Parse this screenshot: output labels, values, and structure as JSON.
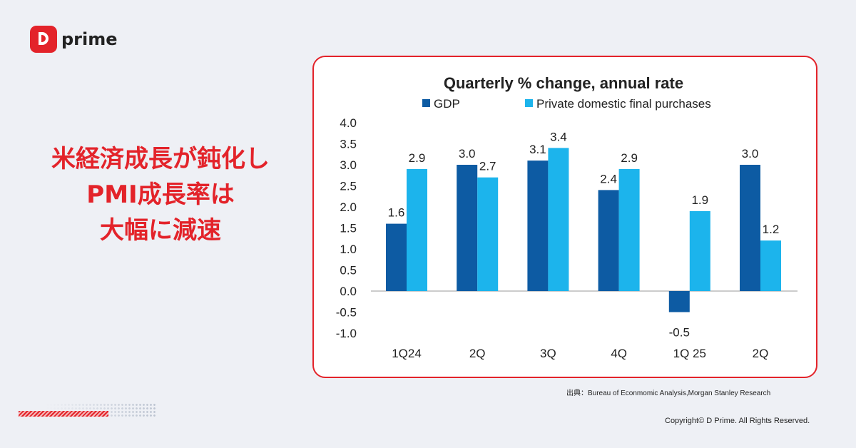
{
  "brand": {
    "logo_text": "prime",
    "accent": "#e3232a"
  },
  "headline": [
    "米経済成長が鈍化し",
    "PMI成長率は",
    "大幅に減速"
  ],
  "source": "出典：Bureau of Econmomic Analysis,Morgan Stanley Research",
  "copyright": "Copyright© D Prime. All Rights Reserved.",
  "chart_data": {
    "type": "bar",
    "title": "Quarterly % change, annual rate",
    "categories": [
      "1Q24",
      "2Q",
      "3Q",
      "4Q",
      "1Q 25",
      "2Q"
    ],
    "series": [
      {
        "name": "GDP",
        "color": "#0d5ba3",
        "values": [
          1.6,
          3.0,
          3.1,
          2.4,
          -0.5,
          3.0
        ]
      },
      {
        "name": "Private domestic final purchases",
        "color": "#1cb4ec",
        "values": [
          2.9,
          2.7,
          3.4,
          2.9,
          1.9,
          1.2
        ]
      }
    ],
    "ylim": [
      -1.0,
      4.0
    ],
    "yticks": [
      "4.0",
      "3.5",
      "3.0",
      "2.5",
      "2.0",
      "1.5",
      "1.0",
      "0.5",
      "0.0",
      "-0.5",
      "-1.0"
    ],
    "grid": false,
    "legend": "top"
  }
}
